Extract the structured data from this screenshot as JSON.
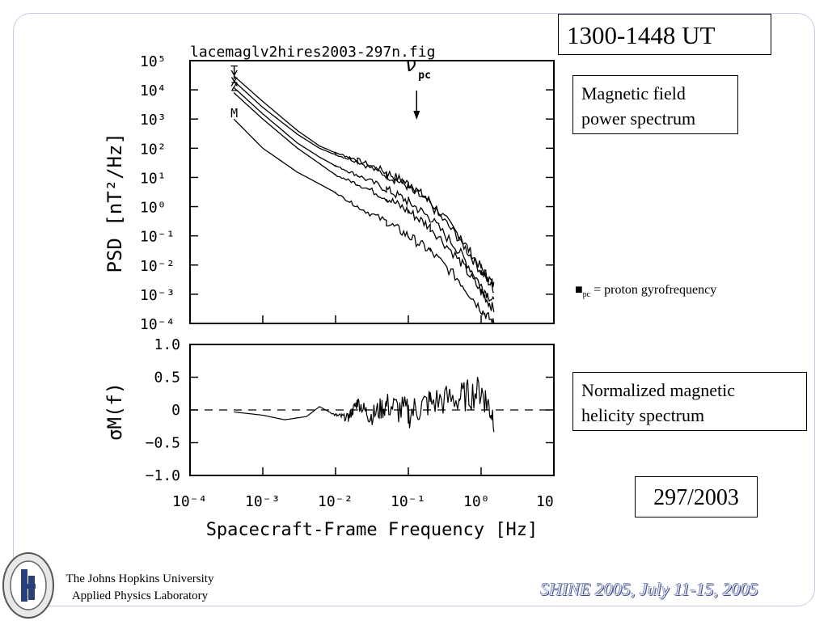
{
  "slide": {
    "time_label": "1300-1448 UT",
    "psd_label_line1": "Magnetic field",
    "psd_label_line2": "power spectrum",
    "helicity_label_line1": "Normalized magnetic",
    "helicity_label_line2": "helicity spectrum",
    "date_label": "297/2003",
    "gyro_note_symbol": "■",
    "gyro_note_sub": "pc",
    "gyro_note_text": " = proton gyrofrequency",
    "institution_line1": "The Johns Hopkins University",
    "institution_line2": "Applied Physics Laboratory",
    "footer": "SHINE 2005, July 11-15, 2005"
  },
  "chart_data": [
    {
      "type": "line",
      "title": "lacemaglv2hires2003-297n.fig",
      "ylabel": "PSD [nT²/Hz]",
      "xlabel": "Spacecraft-Frame Frequency [Hz]",
      "xscale": "log",
      "yscale": "log",
      "xlim": [
        0.0001,
        10
      ],
      "ylim": [
        0.0001,
        100000
      ],
      "x_tick_labels": [
        "10⁻⁴",
        "10⁻³",
        "10⁻²",
        "10⁻¹",
        "10⁰",
        "10"
      ],
      "y_tick_labels": [
        "10⁵",
        "10⁴",
        "10³",
        "10²",
        "10¹",
        "10⁰",
        "10⁻¹",
        "10⁻²",
        "10⁻³",
        "10⁻⁴"
      ],
      "annotation": {
        "label": "ν",
        "sub": "pc",
        "x": 0.13
      },
      "series": [
        {
          "name": "T",
          "x": [
            0.0004,
            0.001,
            0.003,
            0.006,
            0.01,
            0.02,
            0.05,
            0.1,
            0.2,
            0.5,
            1.0,
            1.5
          ],
          "y": [
            30000,
            4000,
            400,
            120,
            70,
            40,
            15,
            6,
            1.5,
            0.1,
            0.008,
            0.002
          ]
        },
        {
          "name": "Y",
          "x": [
            0.0004,
            0.001,
            0.003,
            0.006,
            0.01,
            0.02,
            0.05,
            0.1,
            0.2,
            0.5,
            1.0,
            1.5
          ],
          "y": [
            20000,
            2500,
            300,
            100,
            60,
            35,
            12,
            5,
            1.2,
            0.08,
            0.006,
            0.0015
          ]
        },
        {
          "name": "X",
          "x": [
            0.0004,
            0.001,
            0.003,
            0.006,
            0.01,
            0.02,
            0.05,
            0.1,
            0.2,
            0.5,
            1.0,
            1.5
          ],
          "y": [
            12000,
            1500,
            150,
            50,
            25,
            12,
            4,
            1.5,
            0.4,
            0.03,
            0.002,
            0.0005
          ]
        },
        {
          "name": "Z",
          "x": [
            0.0004,
            0.001,
            0.003,
            0.006,
            0.01,
            0.02,
            0.05,
            0.1,
            0.2,
            0.5,
            1.0,
            1.5
          ],
          "y": [
            8000,
            1000,
            100,
            30,
            12,
            6,
            2,
            0.7,
            0.2,
            0.015,
            0.0012,
            0.0003
          ]
        },
        {
          "name": "M",
          "x": [
            0.0004,
            0.001,
            0.003,
            0.006,
            0.01,
            0.02,
            0.05,
            0.1,
            0.2,
            0.5,
            1.0,
            1.5
          ],
          "y": [
            1000,
            100,
            15,
            6,
            3,
            1,
            0.3,
            0.1,
            0.03,
            0.003,
            0.0003,
            0.0001
          ]
        }
      ]
    },
    {
      "type": "line",
      "ylabel": "σM(f)",
      "xlabel": "Spacecraft-Frame Frequency [Hz]",
      "xscale": "log",
      "xlim": [
        0.0001,
        10
      ],
      "ylim": [
        -1.0,
        1.0
      ],
      "y_tick_labels": [
        "1.0",
        "0.5",
        "0",
        "−0.5",
        "−1.0"
      ],
      "reference_line": 0,
      "series": [
        {
          "x": [
            0.0004,
            0.001,
            0.002,
            0.004,
            0.006,
            0.01,
            0.015,
            0.02,
            0.03,
            0.05,
            0.1,
            0.2,
            0.5,
            1.0,
            1.5
          ],
          "y": [
            -0.03,
            -0.08,
            -0.15,
            -0.1,
            0.05,
            -0.08,
            -0.12,
            0.12,
            -0.1,
            0.08,
            -0.05,
            0.12,
            0.18,
            0.3,
            -0.1
          ]
        }
      ]
    }
  ]
}
